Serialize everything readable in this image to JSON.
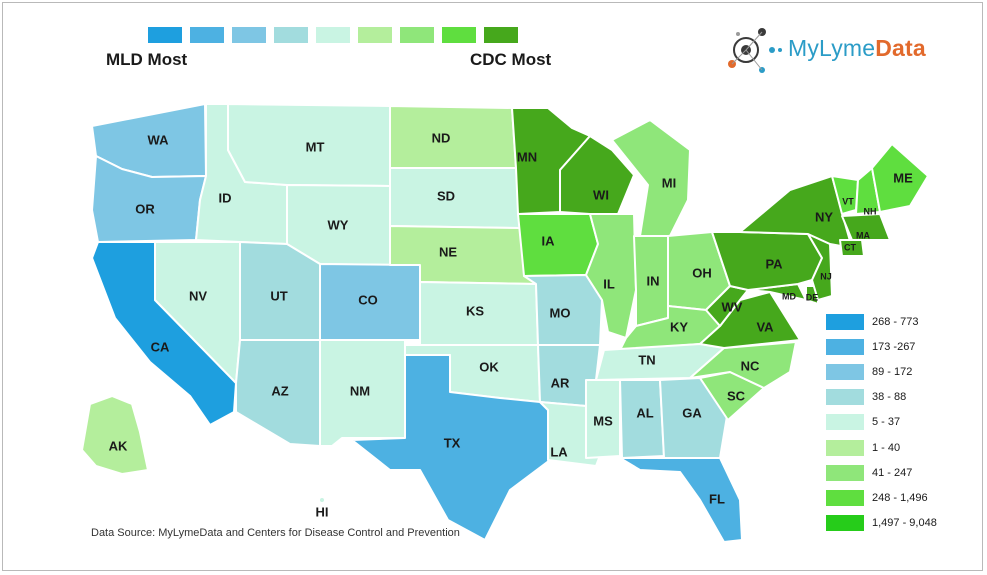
{
  "colors": {
    "b1": "#1e9fdf",
    "b2": "#4db1e2",
    "b3": "#7ec6e4",
    "b4": "#a2dcde",
    "b5": "#c9f4e3",
    "g1": "#b4ee9c",
    "g2": "#8fe67a",
    "g3": "#5fde3f",
    "g4": "#46a81c"
  },
  "scale": {
    "swatches": [
      "#1e9fdf",
      "#4db1e2",
      "#7ec6e4",
      "#a2dcde",
      "#c9f4e3",
      "#b4ee9c",
      "#8fe67a",
      "#5fde3f",
      "#46a81c"
    ],
    "left_label": "MLD Most",
    "right_label": "CDC Most"
  },
  "logo": {
    "text_a": "MyLyme",
    "text_b": "Data"
  },
  "legend": [
    {
      "range": "268 - 773",
      "color": "#1e9fdf"
    },
    {
      "range": "173 -267",
      "color": "#4db1e2"
    },
    {
      "range": "89 - 172",
      "color": "#7ec6e4"
    },
    {
      "range": "38 - 88",
      "color": "#a2dcde"
    },
    {
      "range": "5 - 37",
      "color": "#c9f4e3"
    },
    {
      "range": "1 - 40",
      "color": "#b4ee9c"
    },
    {
      "range": "41 - 247",
      "color": "#8fe67a"
    },
    {
      "range": "248 - 1,496",
      "color": "#5fde3f"
    },
    {
      "range": "1,497 - 9,048",
      "color": "#26cc1a"
    }
  ],
  "states": {
    "WA": "WA",
    "OR": "OR",
    "CA": "CA",
    "NV": "NV",
    "ID": "ID",
    "MT": "MT",
    "WY": "WY",
    "UT": "UT",
    "AZ": "AZ",
    "CO": "CO",
    "NM": "NM",
    "ND": "ND",
    "SD": "SD",
    "NE": "NE",
    "KS": "KS",
    "OK": "OK",
    "TX": "TX",
    "MN": "MN",
    "IA": "IA",
    "MO": "MO",
    "AR": "AR",
    "LA": "LA",
    "WI": "WI",
    "IL": "IL",
    "MI": "MI",
    "IN": "IN",
    "OH": "OH",
    "KY": "KY",
    "TN": "TN",
    "MS": "MS",
    "AL": "AL",
    "GA": "GA",
    "FL": "FL",
    "SC": "SC",
    "NC": "NC",
    "VA": "VA",
    "WV": "WV",
    "PA": "PA",
    "NY": "NY",
    "VT": "VT",
    "NH": "NH",
    "ME": "ME",
    "MA": "MA",
    "CT": "CT",
    "NJ": "NJ",
    "MD": "MD",
    "DE": "DE",
    "AK": "AK",
    "HI": "HI"
  },
  "source": "Data Source: MyLymeData and Centers for Disease Control and Prevention"
}
